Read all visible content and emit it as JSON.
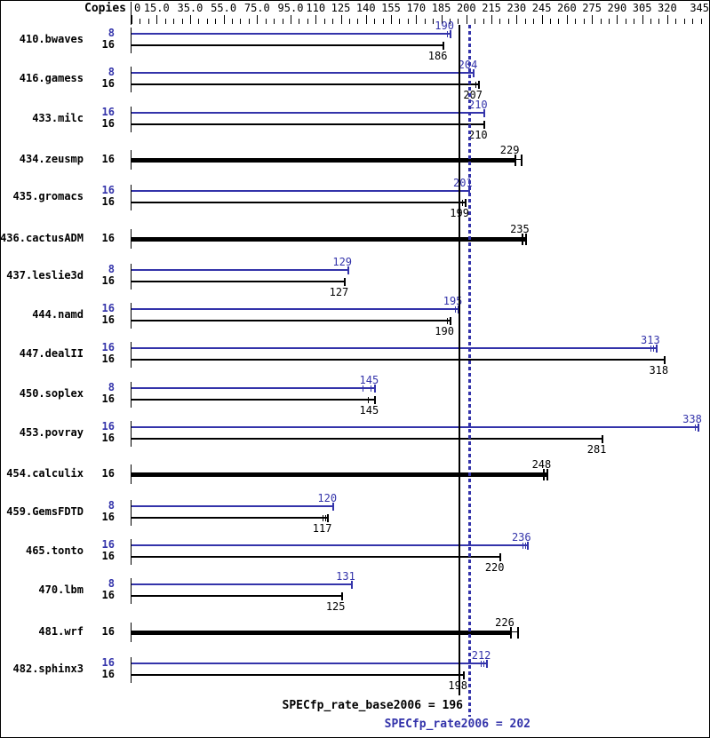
{
  "header": {
    "copies_label": "Copies"
  },
  "footer": {
    "base_label": "SPECfp_rate_base2006 = 196",
    "peak_label": "SPECfp_rate2006 = 202"
  },
  "colors": {
    "peak": "#3333aa",
    "base": "#000000",
    "background": "#ffffff",
    "border": "#000000"
  },
  "chart_data": {
    "type": "bar",
    "orientation": "horizontal",
    "xlim": [
      0,
      345
    ],
    "grid": false,
    "axis_labels": [
      {
        "value": 0,
        "text": "0"
      },
      {
        "value": 15,
        "text": "15.0"
      },
      {
        "value": 35,
        "text": "35.0"
      },
      {
        "value": 55,
        "text": "55.0"
      },
      {
        "value": 75,
        "text": "75.0"
      },
      {
        "value": 95,
        "text": "95.0"
      },
      {
        "value": 110,
        "text": "110"
      },
      {
        "value": 125,
        "text": "125"
      },
      {
        "value": 140,
        "text": "140"
      },
      {
        "value": 155,
        "text": "155"
      },
      {
        "value": 170,
        "text": "170"
      },
      {
        "value": 185,
        "text": "185"
      },
      {
        "value": 200,
        "text": "200"
      },
      {
        "value": 215,
        "text": "215"
      },
      {
        "value": 230,
        "text": "230"
      },
      {
        "value": 245,
        "text": "245"
      },
      {
        "value": 260,
        "text": "260"
      },
      {
        "value": 275,
        "text": "275"
      },
      {
        "value": 290,
        "text": "290"
      },
      {
        "value": 305,
        "text": "305"
      },
      {
        "value": 320,
        "text": "320"
      },
      {
        "value": 345,
        "text": "345"
      }
    ],
    "minor_tick_step": 5,
    "reference_lines": {
      "base": {
        "value": 196,
        "style": "solid"
      },
      "peak": {
        "value": 202,
        "style": "dotted"
      }
    },
    "summary": {
      "base_score": 196,
      "peak_score": 202
    },
    "benchmarks": [
      {
        "name": "410.bwaves",
        "bars": [
          {
            "series": "peak",
            "copies": "8",
            "value": 190,
            "marks": [
              -3,
              0
            ]
          },
          {
            "series": "base",
            "copies": "16",
            "value": 186,
            "marks": [
              0
            ]
          }
        ]
      },
      {
        "name": "416.gamess",
        "bars": [
          {
            "series": "peak",
            "copies": "8",
            "value": 204,
            "marks": [
              0
            ]
          },
          {
            "series": "base",
            "copies": "16",
            "value": 207,
            "marks": [
              -3,
              0
            ]
          }
        ]
      },
      {
        "name": "433.milc",
        "bars": [
          {
            "series": "peak",
            "copies": "16",
            "value": 210,
            "marks": [
              0
            ]
          },
          {
            "series": "base",
            "copies": "16",
            "value": 210,
            "marks": [
              0
            ]
          }
        ]
      },
      {
        "name": "434.zeusmp",
        "bars": [
          {
            "series": "base",
            "copies": "16",
            "value": 229,
            "thick": true,
            "marks": [
              0,
              7
            ]
          }
        ]
      },
      {
        "name": "435.gromacs",
        "bars": [
          {
            "series": "peak",
            "copies": "16",
            "value": 201,
            "marks": [
              0
            ]
          },
          {
            "series": "base",
            "copies": "16",
            "value": 199,
            "marks": [
              -3,
              0
            ]
          }
        ]
      },
      {
        "name": "436.cactusADM",
        "bars": [
          {
            "series": "base",
            "copies": "16",
            "value": 235,
            "thick": true,
            "marks": [
              -4,
              0
            ]
          }
        ]
      },
      {
        "name": "437.leslie3d",
        "bars": [
          {
            "series": "peak",
            "copies": "8",
            "value": 129,
            "marks": [
              0
            ]
          },
          {
            "series": "base",
            "copies": "16",
            "value": 127,
            "marks": [
              0
            ]
          }
        ]
      },
      {
        "name": "444.namd",
        "bars": [
          {
            "series": "peak",
            "copies": "16",
            "value": 195,
            "marks": [
              -3,
              0
            ]
          },
          {
            "series": "base",
            "copies": "16",
            "value": 190,
            "marks": [
              -3,
              0
            ]
          }
        ]
      },
      {
        "name": "447.dealII",
        "bars": [
          {
            "series": "peak",
            "copies": "16",
            "value": 313,
            "marks": [
              -6,
              -3,
              0
            ]
          },
          {
            "series": "base",
            "copies": "16",
            "value": 318,
            "marks": [
              0
            ]
          }
        ]
      },
      {
        "name": "450.soplex",
        "bars": [
          {
            "series": "peak",
            "copies": "8",
            "value": 145,
            "marks": [
              -13,
              -4,
              0
            ]
          },
          {
            "series": "base",
            "copies": "16",
            "value": 145,
            "marks": [
              -7,
              0
            ]
          }
        ]
      },
      {
        "name": "453.povray",
        "bars": [
          {
            "series": "peak",
            "copies": "16",
            "value": 338,
            "marks": [
              -3,
              0
            ]
          },
          {
            "series": "base",
            "copies": "16",
            "value": 281,
            "marks": [
              0
            ]
          }
        ]
      },
      {
        "name": "454.calculix",
        "bars": [
          {
            "series": "base",
            "copies": "16",
            "value": 248,
            "thick": true,
            "marks": [
              -4,
              0
            ]
          }
        ]
      },
      {
        "name": "459.GemsFDTD",
        "bars": [
          {
            "series": "peak",
            "copies": "8",
            "value": 120,
            "marks": [
              0
            ]
          },
          {
            "series": "base",
            "copies": "16",
            "value": 117,
            "marks": [
              -5,
              -2,
              0
            ]
          }
        ]
      },
      {
        "name": "465.tonto",
        "bars": [
          {
            "series": "peak",
            "copies": "16",
            "value": 236,
            "marks": [
              -5,
              -2,
              0
            ]
          },
          {
            "series": "base",
            "copies": "16",
            "value": 220,
            "marks": [
              0
            ]
          }
        ]
      },
      {
        "name": "470.lbm",
        "bars": [
          {
            "series": "peak",
            "copies": "8",
            "value": 131,
            "marks": [
              0
            ]
          },
          {
            "series": "base",
            "copies": "16",
            "value": 125,
            "marks": [
              0
            ]
          }
        ]
      },
      {
        "name": "481.wrf",
        "bars": [
          {
            "series": "base",
            "copies": "16",
            "value": 226,
            "thick": true,
            "marks": [
              0,
              8
            ]
          }
        ]
      },
      {
        "name": "482.sphinx3",
        "bars": [
          {
            "series": "peak",
            "copies": "16",
            "value": 212,
            "marks": [
              -6,
              -3,
              0
            ]
          },
          {
            "series": "base",
            "copies": "16",
            "value": 198,
            "marks": [
              0
            ]
          }
        ]
      }
    ]
  }
}
